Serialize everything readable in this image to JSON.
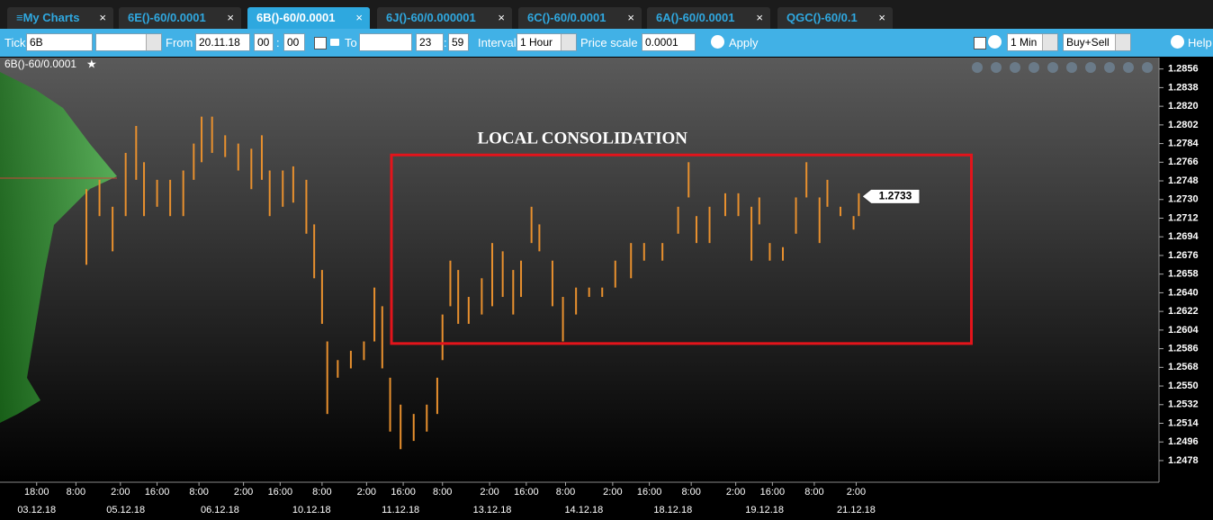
{
  "tabs": [
    "My Charts",
    "6E()-60/0.0001",
    "6B()-60/0.0001",
    "6J()-60/0.000001",
    "6C()-60/0.0001",
    "6A()-60/0.0001",
    "QGC()-60/0.1"
  ],
  "toolbar": {
    "ticker_label": "Ticker",
    "ticker": "6B",
    "from_label": "From",
    "from_date": "20.11.18",
    "from_hour": "00",
    "from_minute": "00",
    "separator": ":",
    "to_label": "To",
    "to_hour": "23",
    "to_minute": "59",
    "interval_label": "Interval",
    "interval": "1 Hour",
    "price_scale_label": "Price scale",
    "price_scale": "0.0001",
    "apply": "Apply",
    "timeframe": "1 Min",
    "side": "Buy+Sell",
    "help": "Help"
  },
  "chart_data": {
    "type": "ohlc",
    "title": "6B()-60/0.0001",
    "color": "#e8902e",
    "annotation": {
      "text": "LOCAL CONSOLIDATION",
      "color": "#e3141b",
      "x": [
        149.5,
        371
      ],
      "y": [
        1.2591,
        1.2773
      ]
    },
    "last_price": 1.2733,
    "x": [
      33,
      38,
      43,
      48,
      52,
      55,
      60,
      65,
      70,
      74,
      77,
      81,
      86,
      91,
      96,
      100,
      103,
      108,
      112,
      117,
      120,
      123,
      125,
      129,
      134,
      139,
      143,
      146,
      149,
      153,
      158,
      163,
      167,
      169,
      172,
      175,
      179,
      184,
      188,
      192,
      196,
      199,
      203,
      206,
      211,
      215,
      220,
      225,
      230,
      235,
      241,
      246,
      253,
      259,
      263,
      266,
      271,
      277,
      282,
      287,
      290,
      294,
      299,
      304,
      308,
      313,
      316,
      321,
      326,
      328
    ],
    "high": [
      1.274,
      1.2749,
      1.2723,
      1.2775,
      1.2801,
      1.2766,
      1.2749,
      1.2749,
      1.2758,
      1.2784,
      1.281,
      1.281,
      1.2792,
      1.2784,
      1.2779,
      1.2792,
      1.2758,
      1.2758,
      1.2762,
      1.2749,
      1.2706,
      1.2662,
      1.2593,
      1.2575,
      1.2584,
      1.2593,
      1.2645,
      1.2627,
      1.2558,
      1.2532,
      1.2523,
      1.2532,
      1.2558,
      1.2619,
      1.2671,
      1.2662,
      1.2636,
      1.2654,
      1.2688,
      1.268,
      1.2662,
      1.2671,
      1.2723,
      1.2706,
      1.2671,
      1.2636,
      1.2645,
      1.2645,
      1.2645,
      1.2671,
      1.2688,
      1.2688,
      1.2688,
      1.2723,
      1.2766,
      1.2714,
      1.2723,
      1.2736,
      1.2736,
      1.2723,
      1.2732,
      1.2688,
      1.2684,
      1.2732,
      1.2766,
      1.2732,
      1.2749,
      1.2723,
      1.2714,
      1.2736
    ],
    "low": [
      1.2667,
      1.2714,
      1.268,
      1.2714,
      1.2749,
      1.2714,
      1.2723,
      1.2714,
      1.2714,
      1.2749,
      1.2766,
      1.2775,
      1.2771,
      1.2758,
      1.274,
      1.2749,
      1.2714,
      1.2723,
      1.2727,
      1.2697,
      1.2654,
      1.261,
      1.2523,
      1.2558,
      1.2567,
      1.2575,
      1.2593,
      1.2567,
      1.2506,
      1.2489,
      1.2497,
      1.2506,
      1.2523,
      1.2575,
      1.2627,
      1.261,
      1.261,
      1.2619,
      1.2627,
      1.2636,
      1.2619,
      1.2636,
      1.2688,
      1.268,
      1.2627,
      1.2593,
      1.2619,
      1.2636,
      1.2636,
      1.2645,
      1.2654,
      1.2671,
      1.2671,
      1.2697,
      1.2732,
      1.2688,
      1.2688,
      1.2714,
      1.2714,
      1.2671,
      1.2706,
      1.2671,
      1.2671,
      1.2697,
      1.2732,
      1.2688,
      1.2723,
      1.2714,
      1.2701,
      1.2714
    ],
    "xlim": [
      0,
      443
    ],
    "ylim": [
      1.2458,
      1.2867
    ],
    "yticks": [
      1.2856,
      1.2838,
      {
        "value": 1.282,
        "label": "1.2820"
      },
      1.2802,
      1.2784,
      1.2766,
      1.2748,
      {
        "value": 1.273,
        "label": "1.2730"
      },
      1.2712,
      1.2694,
      1.2676,
      1.2658,
      {
        "value": 1.264,
        "label": "1.2640"
      },
      1.2622,
      1.2604,
      1.2586,
      1.2568,
      {
        "value": 1.255,
        "label": "1.2550"
      },
      1.2532,
      1.2514,
      1.2496,
      1.2478
    ],
    "xticks": [
      {
        "value": 14,
        "label": "18:00"
      },
      {
        "value": 29,
        "label": "8:00"
      },
      {
        "value": 46,
        "label": "2:00"
      },
      {
        "value": 60,
        "label": "16:00"
      },
      {
        "value": 76,
        "label": "8:00"
      },
      {
        "value": 93,
        "label": "2:00"
      },
      {
        "value": 107,
        "label": "16:00"
      },
      {
        "value": 123,
        "label": "8:00"
      },
      {
        "value": 140,
        "label": "2:00"
      },
      {
        "value": 154,
        "label": "16:00"
      },
      {
        "value": 169,
        "label": "8:00"
      },
      {
        "value": 187,
        "label": "2:00"
      },
      {
        "value": 201,
        "label": "16:00"
      },
      {
        "value": 216,
        "label": "8:00"
      },
      {
        "value": 234,
        "label": "2:00"
      },
      {
        "value": 248,
        "label": "16:00"
      },
      {
        "value": 264,
        "label": "8:00"
      },
      {
        "value": 281,
        "label": "2:00"
      },
      {
        "value": 295,
        "label": "16:00"
      },
      {
        "value": 311,
        "label": "8:00"
      },
      {
        "value": 327,
        "label": "2:00"
      }
    ],
    "date_ticks": [
      {
        "value": 14,
        "label": "03.12.18"
      },
      {
        "value": 48,
        "label": "05.12.18"
      },
      {
        "value": 84,
        "label": "06.12.18"
      },
      {
        "value": 119,
        "label": "10.12.18"
      },
      {
        "value": 153,
        "label": "11.12.18"
      },
      {
        "value": 188,
        "label": "13.12.18"
      },
      {
        "value": 223,
        "label": "14.12.18"
      },
      {
        "value": 257,
        "label": "18.12.18"
      },
      {
        "value": 292,
        "label": "19.12.18"
      },
      {
        "value": 327,
        "label": "21.12.18"
      }
    ]
  }
}
